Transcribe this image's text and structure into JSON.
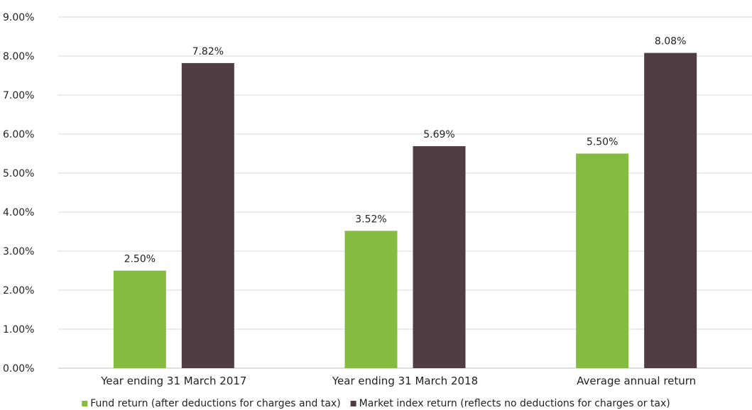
{
  "chart_data": {
    "type": "bar",
    "title": "",
    "xlabel": "",
    "ylabel": "",
    "categories": [
      "Year ending 31 March 2017",
      "Year ending 31 March 2018",
      "Average annual return"
    ],
    "series": [
      {
        "name": "Fund return (after deductions for charges and tax)",
        "color": "#83bc41",
        "values": [
          2.5,
          3.52,
          5.5
        ],
        "labels": [
          "2.50%",
          "3.52%",
          "5.50%"
        ]
      },
      {
        "name": "Market index return (reflects no deductions for charges or tax)",
        "color": "#4f3d43",
        "values": [
          7.82,
          5.69,
          8.08
        ],
        "labels": [
          "7.82%",
          "5.69%",
          "8.08%"
        ]
      }
    ],
    "ylim": [
      0,
      9
    ],
    "yticks": [
      0,
      1,
      2,
      3,
      4,
      5,
      6,
      7,
      8,
      9
    ],
    "ytick_labels": [
      "0.00%",
      "1.00%",
      "2.00%",
      "3.00%",
      "4.00%",
      "5.00%",
      "6.00%",
      "7.00%",
      "8.00%",
      "9.00%"
    ],
    "grid": true,
    "legend": "bottom"
  }
}
